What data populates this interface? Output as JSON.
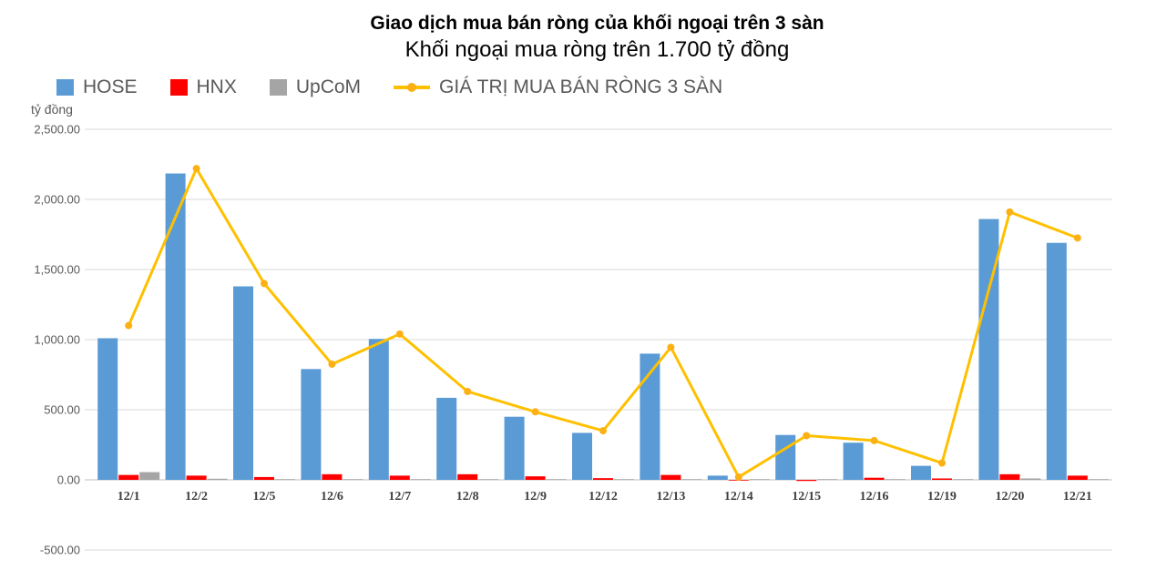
{
  "header": {
    "title": "Giao dịch mua bán ròng của khối ngoại trên 3 sàn",
    "subtitle": "Khối ngoại mua ròng trên 1.700 tỷ đồng"
  },
  "axis_unit_label": "tỷ đồng",
  "colors": {
    "hose": "#5B9BD5",
    "hnx": "#FF0000",
    "upcom": "#A5A5A5",
    "line": "#FFC000",
    "marker": "#FBB116",
    "gridline": "#D9D9D9",
    "axis_line": "#BFBFBF",
    "ytick_label": "#595959",
    "xtick_label": "#3F3F3F"
  },
  "chart_data": {
    "type": "bar",
    "subtype": "grouped-bars-with-line-overlay",
    "title": "Giao dịch mua bán ròng của khối ngoại trên 3 sàn",
    "subtitle": "Khối ngoại mua ròng trên 1.700 tỷ đồng",
    "ylabel": "tỷ đồng",
    "xlabel": "",
    "ylim": [
      -500,
      2500
    ],
    "ytick_step": 500,
    "ytick_labels": [
      "-500.00",
      "0.00",
      "500.00",
      "1,000.00",
      "1,500.00",
      "2,000.00",
      "2,500.00"
    ],
    "grid": true,
    "legend_position": "top-left",
    "categories": [
      "12/1",
      "12/2",
      "12/5",
      "12/6",
      "12/7",
      "12/8",
      "12/9",
      "12/12",
      "12/13",
      "12/14",
      "12/15",
      "12/16",
      "12/19",
      "12/20",
      "12/21"
    ],
    "series": [
      {
        "name": "HOSE",
        "type": "bar",
        "color_key": "hose",
        "values": [
          1010,
          2185,
          1380,
          790,
          1005,
          585,
          450,
          335,
          900,
          30,
          320,
          265,
          100,
          1860,
          1690
        ]
      },
      {
        "name": "HNX",
        "type": "bar",
        "color_key": "hnx",
        "values": [
          35,
          30,
          20,
          40,
          30,
          40,
          25,
          12,
          35,
          -5,
          -8,
          15,
          10,
          40,
          30
        ]
      },
      {
        "name": "UpCoM",
        "type": "bar",
        "color_key": "upcom",
        "values": [
          55,
          8,
          5,
          5,
          5,
          5,
          5,
          5,
          5,
          5,
          3,
          5,
          5,
          10,
          5
        ]
      },
      {
        "name": "GIÁ TRỊ MUA BÁN RÒNG 3 SÀN",
        "type": "line",
        "color_key": "line",
        "values": [
          1100,
          2220,
          1400,
          825,
          1040,
          630,
          485,
          350,
          945,
          20,
          315,
          280,
          120,
          1910,
          1725
        ]
      }
    ]
  }
}
